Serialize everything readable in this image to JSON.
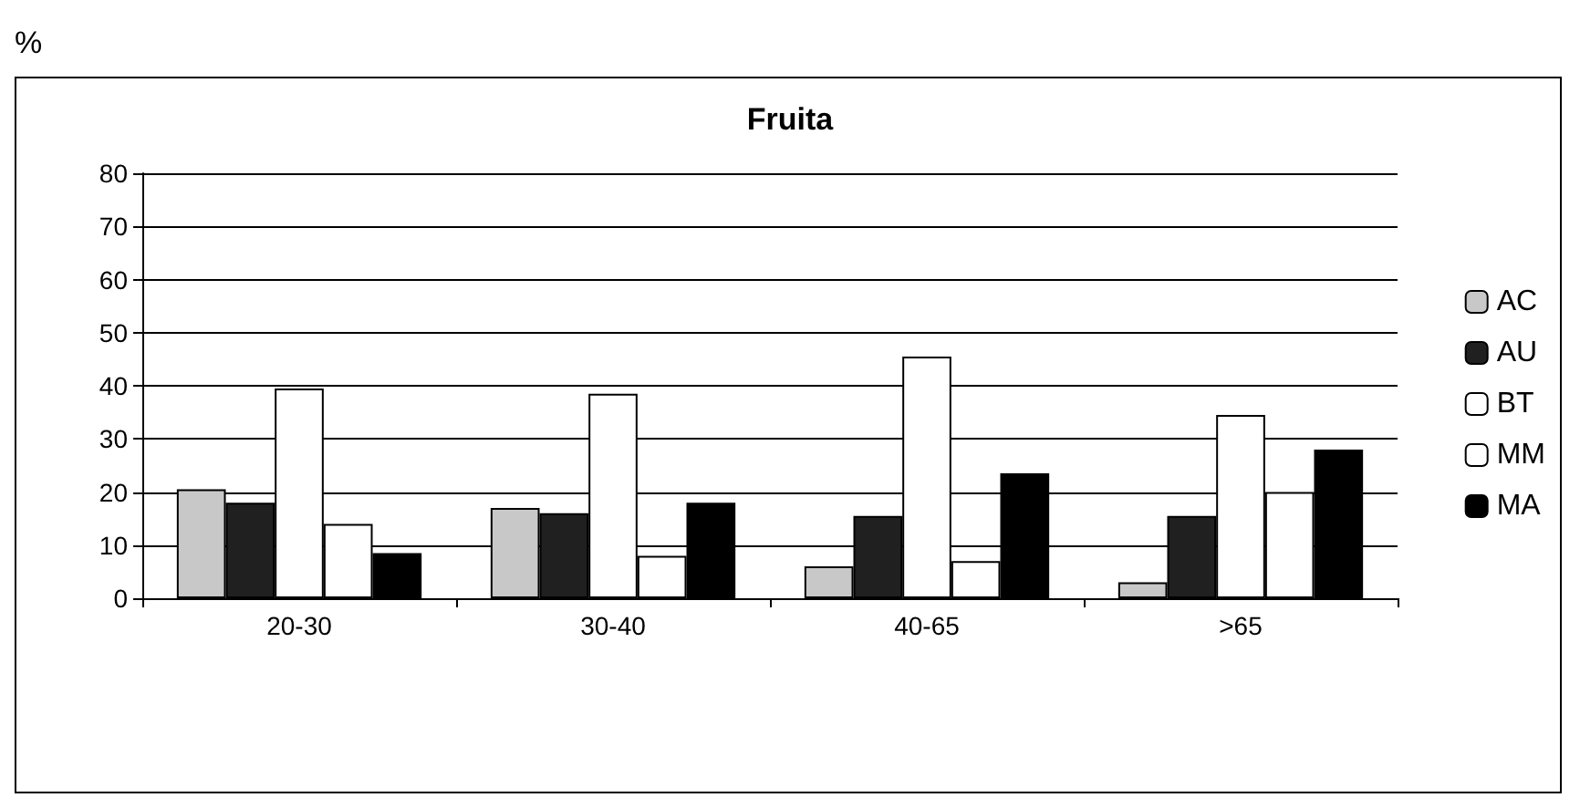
{
  "chart_data": {
    "type": "bar",
    "title": "Fruita",
    "ylabel": "%",
    "categories": [
      "20-30",
      "30-40",
      "40-65",
      ">65"
    ],
    "series": [
      {
        "name": "AC",
        "color": "#c8c8c8",
        "values": [
          20.5,
          17,
          6,
          3
        ]
      },
      {
        "name": "AU",
        "color": "#202020",
        "values": [
          18,
          16,
          15.5,
          15.5
        ]
      },
      {
        "name": "BT",
        "color": "#ffffff",
        "values": [
          39.5,
          38.5,
          45.5,
          34.5
        ]
      },
      {
        "name": "MM",
        "color": "#ffffff",
        "values": [
          14,
          8,
          7,
          20
        ]
      },
      {
        "name": "MA",
        "color": "#000000",
        "values": [
          8.5,
          18,
          23.5,
          28
        ]
      }
    ],
    "ylim": [
      0,
      80
    ],
    "yticks": [
      0,
      10,
      20,
      30,
      40,
      50,
      60,
      70,
      80
    ],
    "grid": "y",
    "legend": "right"
  }
}
